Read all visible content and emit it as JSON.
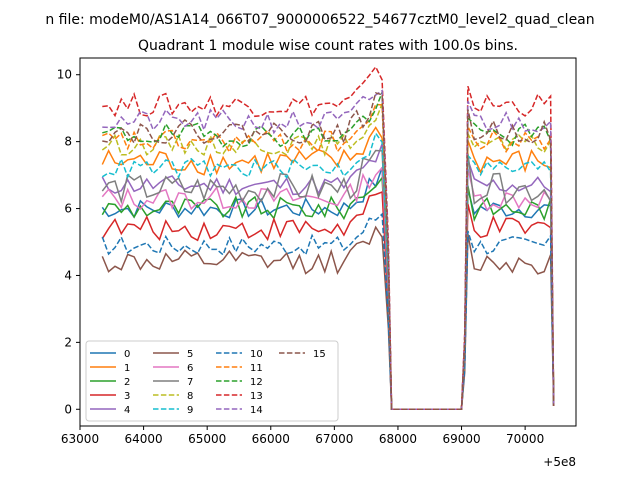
{
  "figure": {
    "suptitle": "n file: modeM0/AS1A14_066T07_9000006522_54677cztM0_level2_quad_clean",
    "offset_label": "+5e8"
  },
  "chart_data": {
    "type": "line",
    "title": "Quadrant 1 module wise count rates with 100.0s bins.",
    "xlabel": "",
    "ylabel": "",
    "x_offset": 500000000,
    "xlim": [
      63000,
      70800
    ],
    "ylim": [
      -0.5,
      10.5
    ],
    "xticks": [
      63000,
      64000,
      65000,
      66000,
      67000,
      68000,
      69000,
      70000
    ],
    "yticks": [
      0,
      2,
      4,
      6,
      8,
      10
    ],
    "grid": false,
    "legend": {
      "position": "lower-left",
      "columns": 4
    },
    "series": [
      {
        "name": "0",
        "color": "#1f77b4",
        "dash": "solid",
        "level": 6.0,
        "amp": 0.3
      },
      {
        "name": "1",
        "color": "#ff7f0e",
        "dash": "solid",
        "level": 7.4,
        "amp": 0.4
      },
      {
        "name": "2",
        "color": "#2ca02c",
        "dash": "solid",
        "level": 6.0,
        "amp": 0.35
      },
      {
        "name": "3",
        "color": "#d62728",
        "dash": "solid",
        "level": 5.4,
        "amp": 0.35
      },
      {
        "name": "4",
        "color": "#9467bd",
        "dash": "solid",
        "level": 6.7,
        "amp": 0.3
      },
      {
        "name": "5",
        "color": "#8c564b",
        "dash": "solid",
        "level": 4.4,
        "amp": 0.35
      },
      {
        "name": "6",
        "color": "#e377c2",
        "dash": "solid",
        "level": 6.3,
        "amp": 0.35
      },
      {
        "name": "7",
        "color": "#7f7f7f",
        "dash": "solid",
        "level": 6.6,
        "amp": 0.45
      },
      {
        "name": "8",
        "color": "#bcbd22",
        "dash": "dashed",
        "level": 7.9,
        "amp": 0.3
      },
      {
        "name": "9",
        "color": "#17becf",
        "dash": "dashed",
        "level": 7.2,
        "amp": 0.3
      },
      {
        "name": "10",
        "color": "#1f77b4",
        "dash": "dashed",
        "level": 4.9,
        "amp": 0.3
      },
      {
        "name": "11",
        "color": "#ff7f0e",
        "dash": "dashed",
        "level": 8.0,
        "amp": 0.35
      },
      {
        "name": "12",
        "color": "#2ca02c",
        "dash": "dashed",
        "level": 8.2,
        "amp": 0.35
      },
      {
        "name": "13",
        "color": "#d62728",
        "dash": "dashed",
        "level": 9.1,
        "amp": 0.35
      },
      {
        "name": "14",
        "color": "#9467bd",
        "dash": "dashed",
        "level": 8.6,
        "amp": 0.35
      },
      {
        "name": "15",
        "color": "#8c564b",
        "dash": "dashed",
        "level": 8.3,
        "amp": 0.35
      }
    ],
    "segments": [
      {
        "x_start": 63350,
        "x_end": 67750,
        "step": 100
      },
      {
        "x_start": 69100,
        "x_end": 70400,
        "step": 100
      }
    ],
    "gap": {
      "x_start": 67900,
      "x_end": 69000,
      "value": 0
    }
  }
}
